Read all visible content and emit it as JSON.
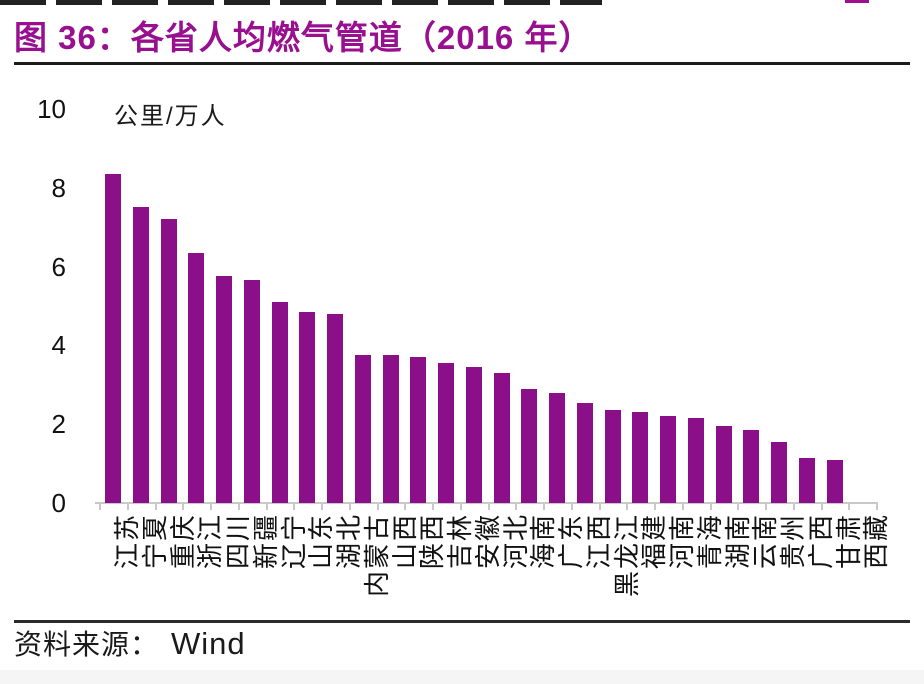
{
  "header": {
    "title": "图 36：各省人均燃气管道（2016 年）"
  },
  "footer": {
    "source_label": "资料来源：",
    "source_value": "Wind"
  },
  "colors": {
    "accent_bar": "#8C0F8A",
    "title_text": "#98108F",
    "axis_gray": "#C9C9C9",
    "text": "#111111"
  },
  "chart_data": {
    "type": "bar",
    "title": "图 36：各省人均燃气管道（2016 年）",
    "unit_label": "公里/万人",
    "xlabel": "",
    "ylabel": "公里/万人",
    "ylim": [
      0,
      10
    ],
    "yticks": [
      0,
      2,
      4,
      6,
      8,
      10
    ],
    "grid": false,
    "legend": "none",
    "bar_color": "#8C0F8A",
    "categories": [
      "江苏",
      "宁夏",
      "重庆",
      "浙江",
      "四川",
      "新疆",
      "辽宁",
      "山东",
      "湖北",
      "内蒙古",
      "山西",
      "陕西",
      "吉林",
      "安徽",
      "河北",
      "海南",
      "广东",
      "江西",
      "黑龙江",
      "福建",
      "河南",
      "青海",
      "湖南",
      "云南",
      "贵州",
      "广西",
      "甘肃",
      "西藏"
    ],
    "values": [
      8.35,
      7.5,
      7.2,
      6.35,
      5.75,
      5.65,
      5.1,
      4.85,
      4.8,
      3.75,
      3.75,
      3.7,
      3.55,
      3.45,
      3.3,
      2.9,
      2.8,
      2.55,
      2.35,
      2.3,
      2.2,
      2.15,
      1.95,
      1.85,
      1.55,
      1.15,
      1.1,
      0
    ]
  }
}
